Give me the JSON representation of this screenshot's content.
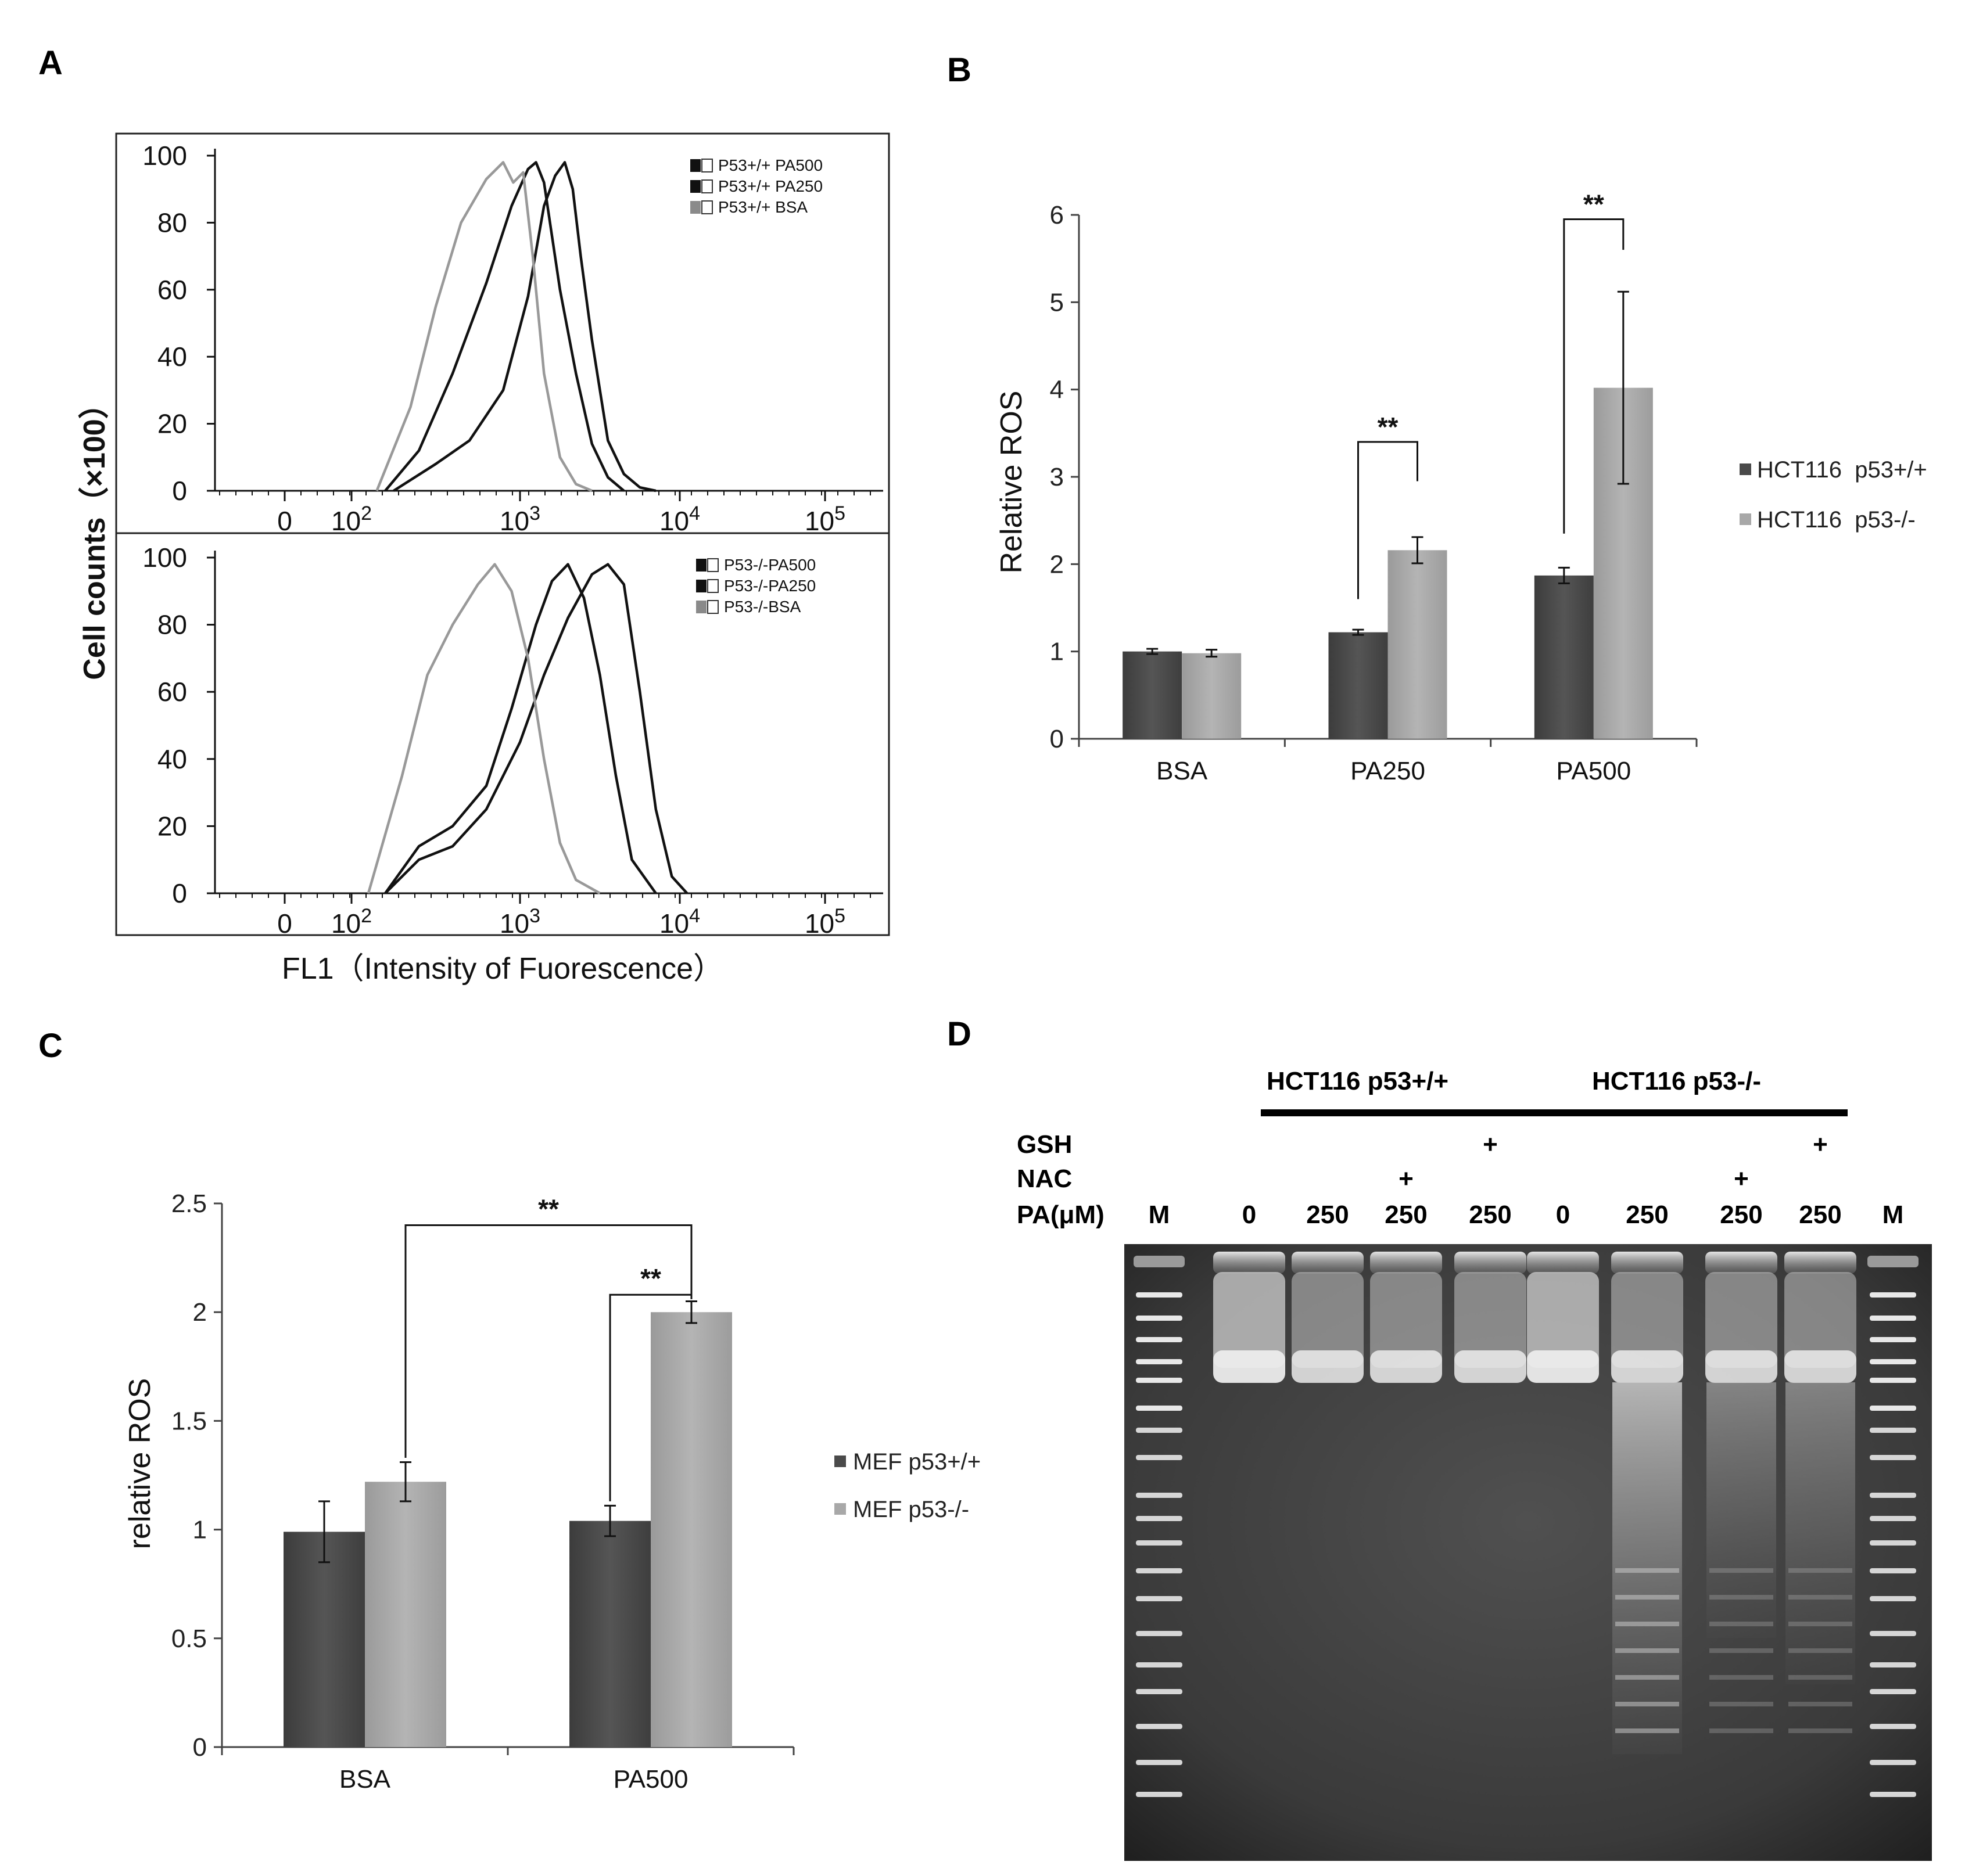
{
  "panels": {
    "A": "A",
    "B": "B",
    "C": "C",
    "D": "D"
  },
  "colors": {
    "dark": "#4a4a4a",
    "light": "#a8a8a8",
    "black": "#111111",
    "gray": "#999999"
  },
  "chart_data": [
    {
      "id": "A",
      "type": "line",
      "title": "",
      "ylabel": "Cell counts（×100）",
      "xlabel": "FL1（Intensity of Fuorescence）",
      "y_ticks": [
        "0",
        "20",
        "40",
        "60",
        "80",
        "100"
      ],
      "x_ticks": [
        {
          "base": "0",
          "exp": ""
        },
        {
          "base": "10",
          "exp": "2"
        },
        {
          "base": "10",
          "exp": "3"
        },
        {
          "base": "10",
          "exp": "4"
        },
        {
          "base": "10",
          "exp": "5"
        }
      ],
      "panels": [
        {
          "name": "top",
          "legend": [
            "P53+/+ PA500",
            "P53+/+ PA250",
            "P53+/+ BSA"
          ],
          "series": [
            {
              "name": "P53+/+ PA500",
              "color": "#111111",
              "x": [
                2.25,
                2.5,
                2.7,
                2.9,
                3.05,
                3.15,
                3.22,
                3.28,
                3.33,
                3.38,
                3.45,
                3.55,
                3.65,
                3.75,
                3.85
              ],
              "y": [
                0,
                8,
                15,
                30,
                58,
                85,
                94,
                98,
                90,
                70,
                45,
                15,
                5,
                1,
                0
              ]
            },
            {
              "name": "P53+/+ PA250",
              "color": "#111111",
              "x": [
                2.2,
                2.4,
                2.6,
                2.8,
                2.95,
                3.05,
                3.1,
                3.15,
                3.25,
                3.35,
                3.45,
                3.55,
                3.65
              ],
              "y": [
                0,
                12,
                35,
                62,
                85,
                96,
                98,
                92,
                60,
                35,
                14,
                4,
                0
              ]
            },
            {
              "name": "P53+/+ BSA",
              "color": "#999999",
              "x": [
                2.15,
                2.35,
                2.5,
                2.65,
                2.8,
                2.9,
                2.96,
                3.02,
                3.08,
                3.15,
                3.25,
                3.35,
                3.45
              ],
              "y": [
                0,
                25,
                55,
                80,
                93,
                98,
                92,
                95,
                70,
                35,
                10,
                2,
                0
              ]
            }
          ]
        },
        {
          "name": "bottom",
          "legend": [
            "P53-/-PA500",
            "P53-/-PA250",
            "P53-/-BSA"
          ],
          "series": [
            {
              "name": "P53-/-PA500",
              "color": "#111111",
              "x": [
                2.2,
                2.4,
                2.6,
                2.8,
                3.0,
                3.15,
                3.3,
                3.45,
                3.55,
                3.65,
                3.75,
                3.85,
                3.95,
                4.05
              ],
              "y": [
                0,
                10,
                14,
                25,
                45,
                65,
                82,
                95,
                98,
                92,
                60,
                25,
                5,
                0
              ]
            },
            {
              "name": "P53-/-PA250",
              "color": "#111111",
              "x": [
                2.2,
                2.4,
                2.6,
                2.8,
                2.95,
                3.1,
                3.2,
                3.3,
                3.4,
                3.5,
                3.6,
                3.7,
                3.85
              ],
              "y": [
                0,
                14,
                20,
                32,
                55,
                80,
                93,
                98,
                88,
                65,
                35,
                10,
                0
              ]
            },
            {
              "name": "P53-/-BSA",
              "color": "#999999",
              "x": [
                2.1,
                2.3,
                2.45,
                2.6,
                2.75,
                2.85,
                2.95,
                3.05,
                3.15,
                3.25,
                3.35,
                3.5
              ],
              "y": [
                0,
                35,
                65,
                80,
                92,
                98,
                90,
                70,
                40,
                15,
                4,
                0
              ]
            }
          ]
        }
      ]
    },
    {
      "id": "B",
      "type": "bar",
      "title": "",
      "ylabel": "Relative ROS",
      "xlabel": "",
      "ylim": [
        0,
        6
      ],
      "y_ticks": [
        "0",
        "1",
        "2",
        "3",
        "4",
        "5",
        "6"
      ],
      "categories": [
        "BSA",
        "PA250",
        "PA500"
      ],
      "series": [
        {
          "name": "HCT116  p53+/+",
          "color": "#4a4a4a",
          "values": [
            1.0,
            1.22,
            1.87
          ],
          "errors": [
            0.03,
            0.03,
            0.09
          ]
        },
        {
          "name": "HCT116  p53-/-",
          "color": "#a8a8a8",
          "values": [
            0.98,
            2.16,
            4.02
          ],
          "errors": [
            0.04,
            0.15,
            1.1
          ]
        }
      ],
      "annotations": [
        {
          "text": "**",
          "category": 1,
          "from_value": 1.6,
          "to_value": 2.95,
          "top": 3.4
        },
        {
          "text": "**",
          "category": 2,
          "from_value": 2.35,
          "to_value": 5.6,
          "top": 5.95
        }
      ]
    },
    {
      "id": "C",
      "type": "bar",
      "title": "",
      "ylabel": "relative ROS",
      "xlabel": "",
      "ylim": [
        0,
        2.5
      ],
      "y_ticks": [
        "0",
        "0.5",
        "1",
        "1.5",
        "2",
        "2.5"
      ],
      "categories": [
        "BSA",
        "PA500"
      ],
      "series": [
        {
          "name": "MEF p53+/+",
          "color": "#4a4a4a",
          "values": [
            0.99,
            1.04
          ],
          "errors": [
            0.14,
            0.07
          ]
        },
        {
          "name": "MEF p53-/-",
          "color": "#a8a8a8",
          "values": [
            1.22,
            2.0
          ],
          "errors": [
            0.09,
            0.05
          ]
        }
      ],
      "annotations": [
        {
          "text": "**",
          "x_from": "BSA/p53-/-",
          "x_to": "PA500/p53-/-",
          "from_value": 1.33,
          "to_value": 2.06,
          "top": 2.4
        },
        {
          "text": "**",
          "x_from": "PA500/p53+/+",
          "x_to": "PA500/p53-/-",
          "from_value": 1.13,
          "to_value": 2.06,
          "top": 2.08
        }
      ]
    }
  ],
  "gel": {
    "group_labels": [
      "HCT116 p53+/+",
      "HCT116 p53-/-"
    ],
    "row_labels": {
      "gsh": "GSH",
      "nac": "NAC",
      "pa": "PA(μM)"
    },
    "lanes": [
      {
        "pa": "M",
        "nac": "",
        "gsh": ""
      },
      {
        "pa": "0",
        "nac": "",
        "gsh": ""
      },
      {
        "pa": "250",
        "nac": "",
        "gsh": ""
      },
      {
        "pa": "250",
        "nac": "+",
        "gsh": ""
      },
      {
        "pa": "250",
        "nac": "",
        "gsh": "+"
      },
      {
        "pa": "0",
        "nac": "",
        "gsh": ""
      },
      {
        "pa": "250",
        "nac": "",
        "gsh": ""
      },
      {
        "pa": "250",
        "nac": "+",
        "gsh": ""
      },
      {
        "pa": "250",
        "nac": "",
        "gsh": "+"
      },
      {
        "pa": "M",
        "nac": "",
        "gsh": ""
      }
    ]
  }
}
